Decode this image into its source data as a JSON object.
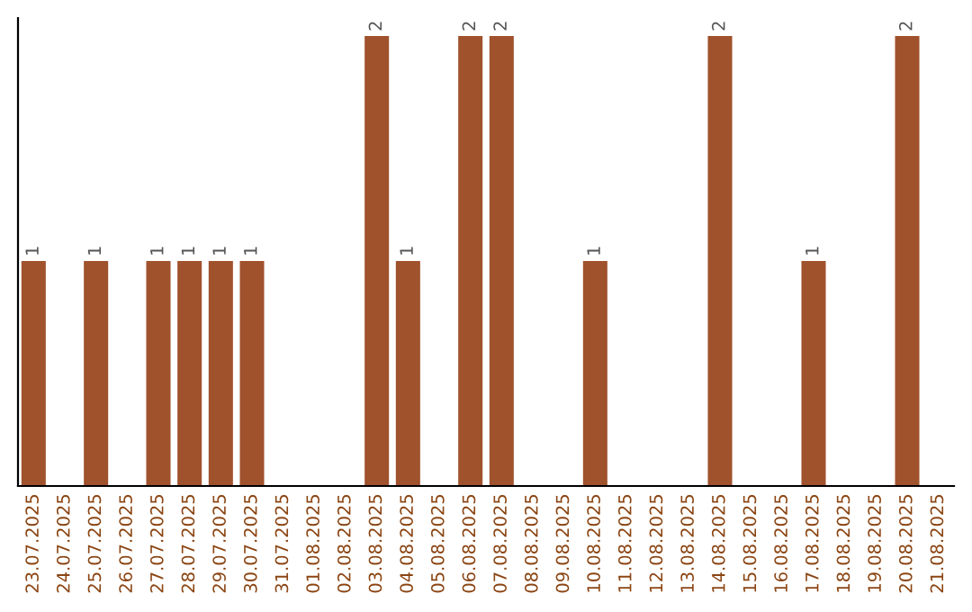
{
  "chart_data": {
    "type": "bar",
    "categories": [
      "23.07.2025",
      "24.07.2025",
      "25.07.2025",
      "26.07.2025",
      "27.07.2025",
      "28.07.2025",
      "29.07.2025",
      "30.07.2025",
      "31.07.2025",
      "01.08.2025",
      "02.08.2025",
      "03.08.2025",
      "04.08.2025",
      "05.08.2025",
      "06.08.2025",
      "07.08.2025",
      "08.08.2025",
      "09.08.2025",
      "10.08.2025",
      "11.08.2025",
      "12.08.2025",
      "13.08.2025",
      "14.08.2025",
      "15.08.2025",
      "16.08.2025",
      "17.08.2025",
      "18.08.2025",
      "19.08.2025",
      "20.08.2025",
      "21.08.2025"
    ],
    "values": [
      1,
      0,
      1,
      0,
      1,
      1,
      1,
      1,
      0,
      0,
      0,
      2,
      1,
      0,
      2,
      2,
      0,
      0,
      1,
      0,
      0,
      0,
      2,
      0,
      0,
      1,
      0,
      0,
      2,
      0
    ],
    "value_labels": [
      "1",
      null,
      "1",
      null,
      "1",
      "1",
      "1",
      "1",
      null,
      null,
      null,
      "2",
      "1",
      null,
      "2",
      "2",
      null,
      null,
      "1",
      null,
      null,
      null,
      "2",
      null,
      null,
      "1",
      null,
      null,
      "2",
      null
    ],
    "color": "#a0522d",
    "ylim": [
      0,
      2.08
    ],
    "tick_labels": "x",
    "grid": false,
    "legend": false
  }
}
